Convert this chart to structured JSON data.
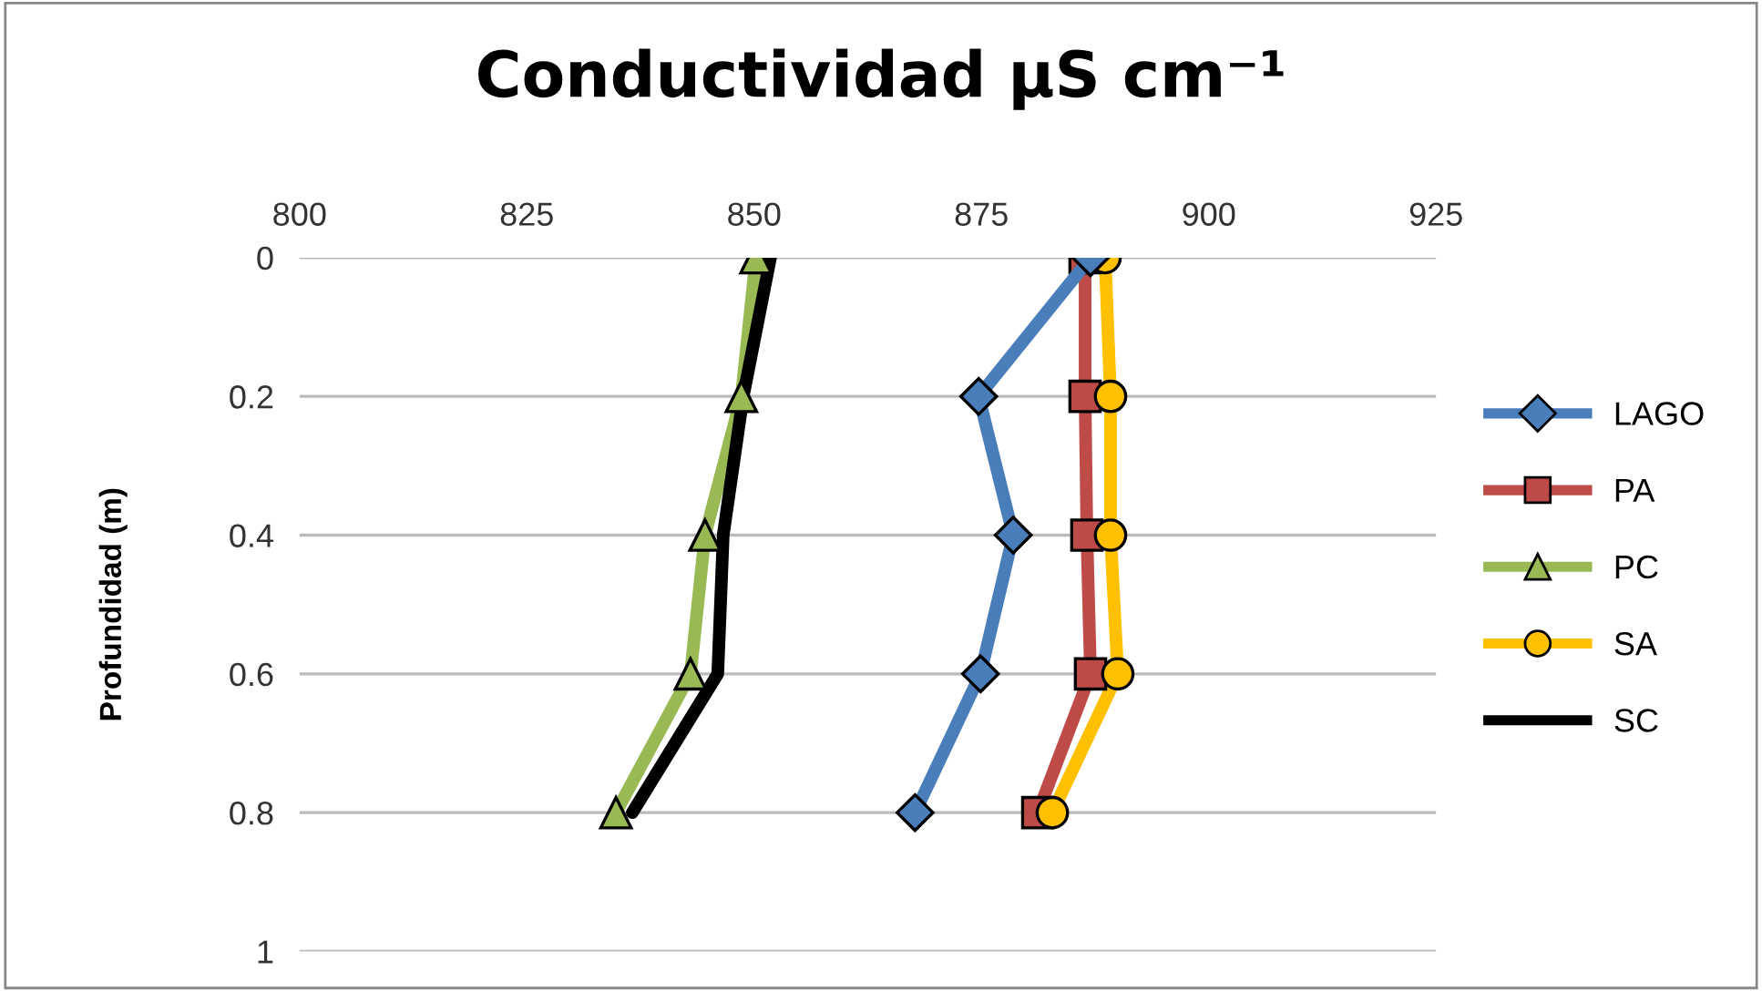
{
  "chart_data": {
    "type": "line",
    "title": "Conductividad µS cm⁻¹",
    "ylabel": "Profundidad (m)",
    "xlim": [
      800,
      925
    ],
    "xticks": [
      800,
      825,
      850,
      875,
      900,
      925
    ],
    "ylim": [
      1,
      0
    ],
    "yticks": [
      0,
      0.2,
      0.4,
      0.6,
      0.8,
      1
    ],
    "grid": "y",
    "legend": "right",
    "series": [
      {
        "name": "LAGO",
        "color": "#4a7ebb",
        "marker": "diamond",
        "x": [
          887,
          874.7,
          878.5,
          874.9,
          867.7
        ],
        "values": [
          0,
          0.2,
          0.4,
          0.6,
          0.8
        ]
      },
      {
        "name": "PA",
        "color": "#be4b48",
        "marker": "square",
        "x": [
          886.4,
          886.4,
          886.6,
          887,
          881.2
        ],
        "values": [
          0,
          0.2,
          0.4,
          0.6,
          0.8
        ]
      },
      {
        "name": "PC",
        "color": "#98b954",
        "marker": "triangle",
        "x": [
          850.2,
          848.6,
          844.6,
          843,
          834.8
        ],
        "values": [
          0,
          0.2,
          0.4,
          0.6,
          0.8
        ]
      },
      {
        "name": "SA",
        "color": "#ffc000",
        "marker": "circle",
        "x": [
          888.6,
          889.2,
          889.2,
          890,
          882.8
        ],
        "values": [
          0,
          0.2,
          0.4,
          0.6,
          0.8
        ]
      },
      {
        "name": "SC",
        "color": "#000000",
        "marker": "none",
        "x": [
          851.8,
          848.8,
          846.6,
          846,
          836.6
        ],
        "values": [
          0,
          0.2,
          0.4,
          0.6,
          0.8
        ]
      }
    ]
  }
}
